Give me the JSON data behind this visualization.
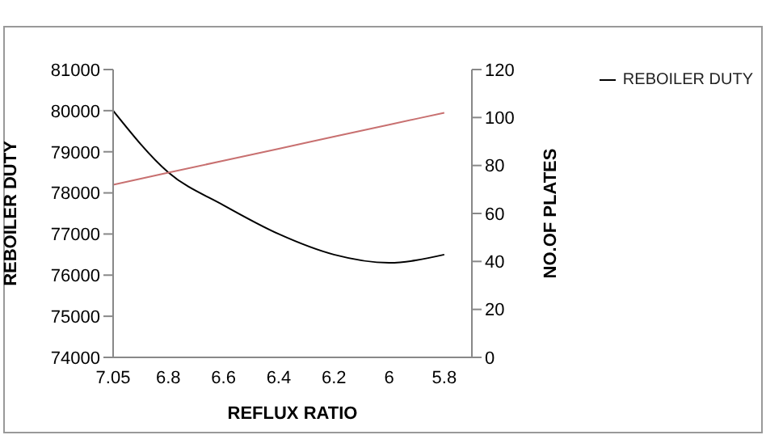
{
  "chart_data": {
    "type": "line",
    "xlabel": "REFLUX RATIO",
    "ylabel": "REBOILER DUTY",
    "y2label": "NO.OF  PLATES",
    "categories": [
      "7.05",
      "6.8",
      "6.6",
      "6.4",
      "6.2",
      "6",
      "5.8"
    ],
    "series": [
      {
        "name": "REBOILER DUTY",
        "color": "#000000",
        "values": [
          80000,
          78500,
          77700,
          77000,
          76500,
          76300,
          76500
        ]
      },
      {
        "color": "#c87070",
        "axis": "y2",
        "values": [
          72,
          77,
          82,
          87,
          92,
          97,
          102
        ]
      }
    ],
    "ylim": [
      74000,
      81000
    ],
    "yticks": [
      74000,
      75000,
      76000,
      77000,
      78000,
      79000,
      80000,
      81000
    ],
    "y2lim": [
      0,
      120
    ],
    "y2ticks": [
      0,
      20,
      40,
      60,
      80,
      100,
      120
    ],
    "legend": "top right",
    "grid": false,
    "marker": "none",
    "line_style": "solid"
  }
}
